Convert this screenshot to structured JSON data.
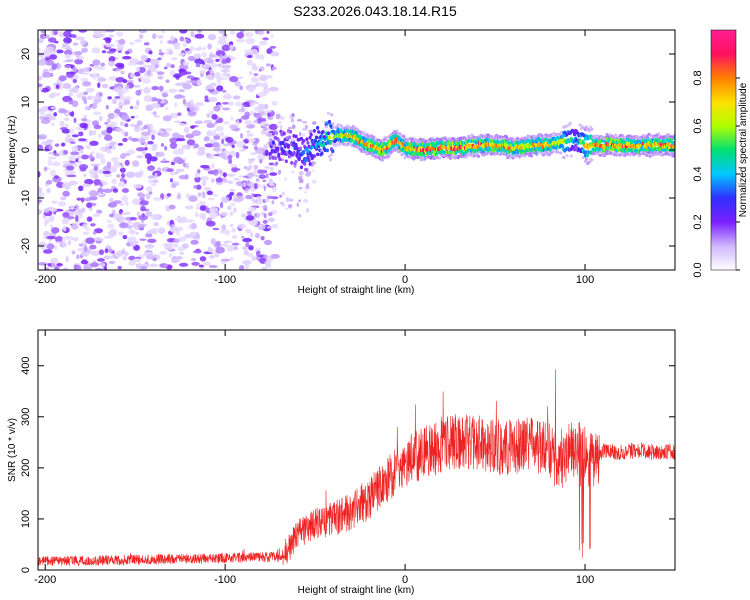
{
  "title": "S233.2026.043.18.14.R15",
  "chart_data": [
    {
      "type": "heatmap",
      "xlabel": "Height of straight line (km)",
      "ylabel": "Frequency (Hz)",
      "xlim": [
        -204,
        150
      ],
      "ylim": [
        -25,
        25
      ],
      "xticks": [
        -200,
        -100,
        0,
        100
      ],
      "yticks": [
        20,
        10,
        0,
        -10,
        -20
      ],
      "colorbar": {
        "label": "Normalized spectral amplitude",
        "range": [
          0,
          1
        ],
        "ticks": [
          0.0,
          0.2,
          0.4,
          0.6,
          0.8
        ],
        "colormap": [
          "#ffffff",
          "#d0b8ff",
          "#7a20ff",
          "#3030ff",
          "#00c8ff",
          "#00e070",
          "#b0ff00",
          "#ffe000",
          "#ff8000",
          "#ff1060",
          "#ff2090"
        ]
      },
      "noise_region_x": [
        -204,
        -72
      ],
      "signal_track": {
        "x": [
          -75,
          -65,
          -55,
          -48,
          -40,
          -30,
          -20,
          -12,
          -5,
          0,
          10,
          20,
          30,
          40,
          50,
          60,
          70,
          80,
          90,
          95,
          100,
          110,
          120,
          130,
          140,
          150
        ],
        "freq": [
          0,
          1,
          -1,
          2,
          3,
          3,
          1,
          0,
          2,
          0.5,
          0,
          0.5,
          0.5,
          1,
          1,
          0.5,
          1,
          1,
          2,
          2,
          1,
          1,
          1,
          1,
          1,
          1
        ],
        "amplitude": [
          0.25,
          0.3,
          0.35,
          0.45,
          0.6,
          0.75,
          0.8,
          0.85,
          0.8,
          0.75,
          0.9,
          0.85,
          0.9,
          0.8,
          0.85,
          0.8,
          0.8,
          0.75,
          0.6,
          0.35,
          0.7,
          0.85,
          0.85,
          0.8,
          0.85,
          0.85
        ]
      }
    },
    {
      "type": "line",
      "xlabel": "Height of straight line (km)",
      "ylabel": "SNR (10 * v/v)",
      "xlim": [
        -204,
        150
      ],
      "ylim": [
        0,
        470
      ],
      "xticks": [
        -200,
        -100,
        0,
        100
      ],
      "yticks": [
        0,
        100,
        200,
        300,
        400
      ],
      "color": "#ee2222",
      "series": [
        {
          "name": "SNR",
          "x": [
            -204,
            -180,
            -150,
            -120,
            -90,
            -70,
            -65,
            -60,
            -50,
            -40,
            -30,
            -20,
            -10,
            0,
            10,
            20,
            30,
            40,
            50,
            60,
            70,
            80,
            85,
            90,
            95,
            100,
            105,
            110,
            120,
            130,
            140,
            150
          ],
          "values": [
            18,
            18,
            20,
            22,
            24,
            26,
            40,
            70,
            90,
            100,
            115,
            140,
            175,
            210,
            230,
            245,
            250,
            250,
            240,
            240,
            245,
            240,
            200,
            230,
            240,
            230,
            210,
            235,
            230,
            235,
            230,
            232
          ]
        }
      ]
    }
  ]
}
